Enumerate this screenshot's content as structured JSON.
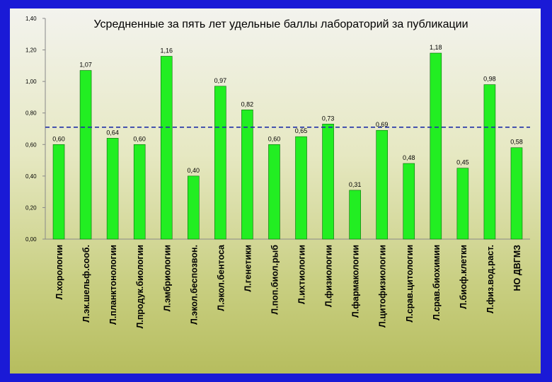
{
  "chart_data": {
    "type": "bar",
    "title": "Усредненные за пять лет удельные баллы лабораторий за публикации",
    "xlabel": "",
    "ylabel": "",
    "ylim": [
      0,
      1.4
    ],
    "yticks": [
      "0,00",
      "0,20",
      "0,40",
      "0,60",
      "0,80",
      "1,00",
      "1,20",
      "1,40"
    ],
    "grid": false,
    "legend": "none",
    "reference_line": 0.71,
    "categories": [
      "Л.хорологии",
      "Л.эк.шельф.сооб.",
      "Л.планктонологии",
      "Л.продук.биологии",
      "Л.эмбриологии",
      "Л.экол.беспозвон.",
      "Л.экол.бентоса",
      "Л.генетики",
      "Л.поп.биол.рыб",
      "Л.ихтиологии",
      "Л.физиологии",
      "Л.фармакологии",
      "Л.цитофизиологии",
      "Л.срав.цитологии",
      "Л.срав.биохимии",
      "Л.биоф.клетки",
      "Л.физ.вод.раст.",
      "НО ДВГМЗ"
    ],
    "values": [
      0.6,
      1.07,
      0.64,
      0.6,
      1.16,
      0.4,
      0.97,
      0.82,
      0.6,
      0.65,
      0.73,
      0.31,
      0.69,
      0.48,
      1.18,
      0.45,
      0.98,
      0.58
    ],
    "value_labels": [
      "0,60",
      "1,07",
      "0,64",
      "0,60",
      "1,16",
      "0,40",
      "0,97",
      "0,82",
      "0,60",
      "0,65",
      "0,73",
      "0,31",
      "0,69",
      "0,48",
      "1,18",
      "0,45",
      "0,98",
      "0,58"
    ],
    "colors": {
      "bar": "#22ee22",
      "bar_stroke": "#0a6a0a",
      "reference_line": "#1f2fa8",
      "frame": "#1a1ad6"
    }
  }
}
